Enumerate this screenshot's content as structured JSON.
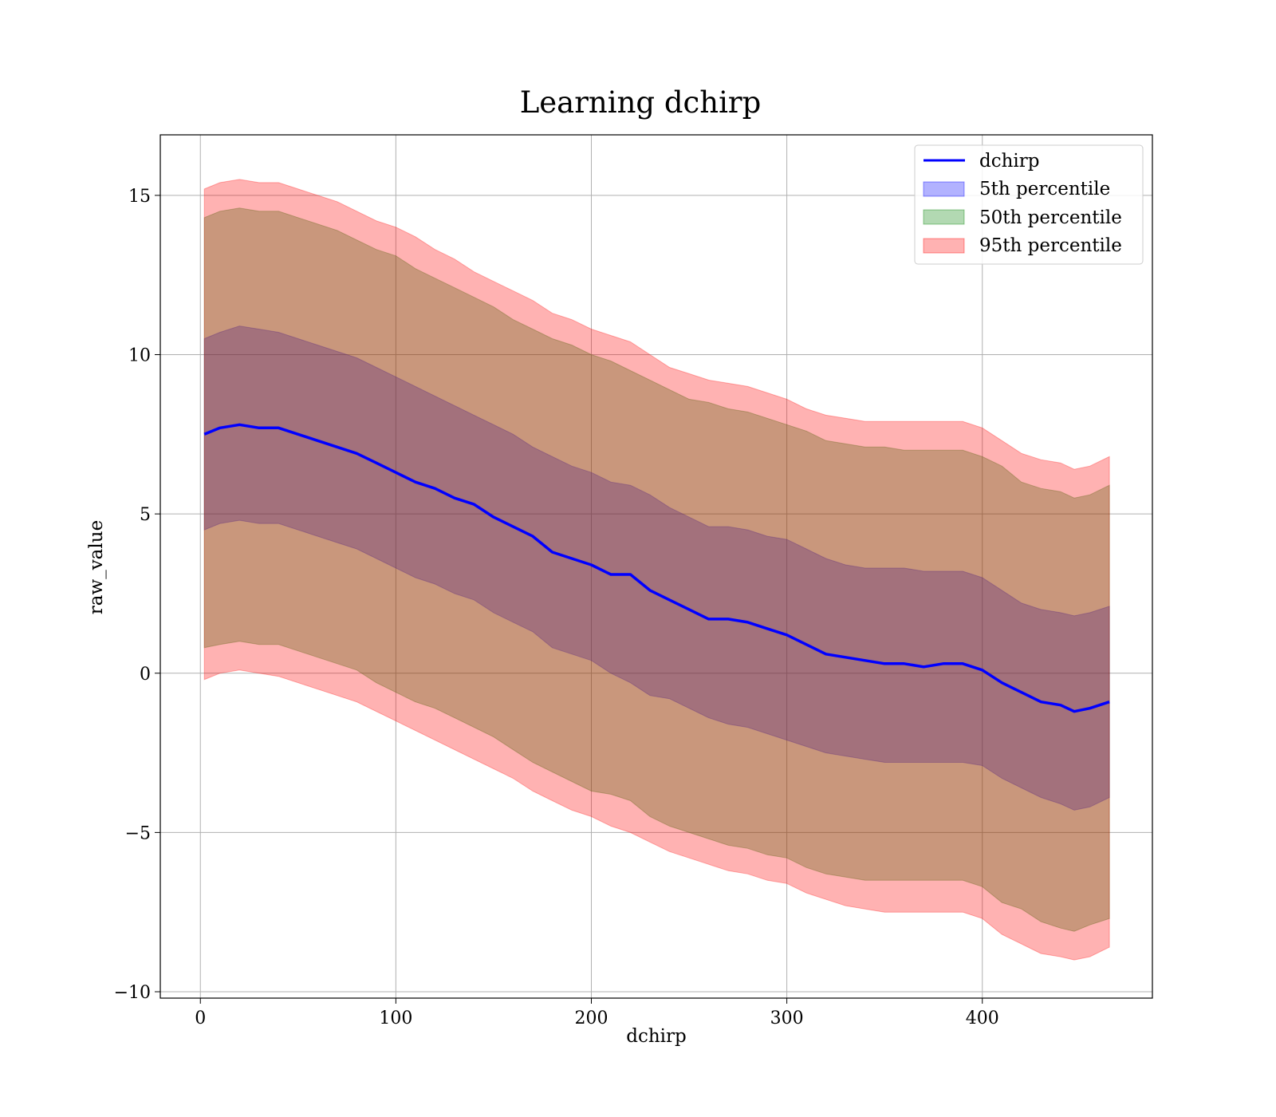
{
  "chart_data": {
    "type": "line",
    "title": "Learning dchirp",
    "xlabel": "dchirp",
    "ylabel": "raw_value",
    "xlim": [
      -20.5,
      487
    ],
    "ylim": [
      -10.2,
      16.9
    ],
    "xticks": [
      0,
      100,
      200,
      300,
      400
    ],
    "yticks": [
      -10,
      -5,
      0,
      5,
      10,
      15
    ],
    "xtick_labels": [
      "0",
      "100",
      "200",
      "300",
      "400"
    ],
    "ytick_labels": [
      "−10",
      "−5",
      "0",
      "5",
      "10",
      "15"
    ],
    "grid": true,
    "legend_position": "top-right",
    "x": [
      2,
      10,
      20,
      30,
      40,
      50,
      60,
      70,
      80,
      90,
      100,
      110,
      120,
      130,
      140,
      150,
      160,
      170,
      180,
      190,
      200,
      210,
      220,
      230,
      240,
      250,
      260,
      270,
      280,
      290,
      300,
      310,
      320,
      330,
      340,
      350,
      360,
      370,
      380,
      390,
      400,
      410,
      420,
      430,
      440,
      447,
      455,
      465
    ],
    "series": [
      {
        "name": "dchirp",
        "kind": "line",
        "color": "#0000ff",
        "values": [
          7.5,
          7.7,
          7.8,
          7.7,
          7.7,
          7.5,
          7.3,
          7.1,
          6.9,
          6.6,
          6.3,
          6.0,
          5.8,
          5.5,
          5.3,
          4.9,
          4.6,
          4.3,
          3.8,
          3.6,
          3.4,
          3.1,
          3.1,
          2.6,
          2.3,
          2.0,
          1.7,
          1.7,
          1.6,
          1.4,
          1.2,
          0.9,
          0.6,
          0.5,
          0.4,
          0.3,
          0.3,
          0.2,
          0.3,
          0.3,
          0.1,
          -0.3,
          -0.6,
          -0.9,
          -1.0,
          -1.2,
          -1.1,
          -0.9
        ]
      },
      {
        "name": "5th percentile",
        "kind": "band",
        "color": "#0000ff",
        "lower": [
          4.5,
          4.7,
          4.8,
          4.7,
          4.7,
          4.5,
          4.3,
          4.1,
          3.9,
          3.6,
          3.3,
          3.0,
          2.8,
          2.5,
          2.3,
          1.9,
          1.6,
          1.3,
          0.8,
          0.6,
          0.4,
          0.0,
          -0.3,
          -0.7,
          -0.8,
          -1.1,
          -1.4,
          -1.6,
          -1.7,
          -1.9,
          -2.1,
          -2.3,
          -2.5,
          -2.6,
          -2.7,
          -2.8,
          -2.8,
          -2.8,
          -2.8,
          -2.8,
          -2.9,
          -3.3,
          -3.6,
          -3.9,
          -4.1,
          -4.3,
          -4.2,
          -3.9
        ],
        "upper": [
          10.5,
          10.7,
          10.9,
          10.8,
          10.7,
          10.5,
          10.3,
          10.1,
          9.9,
          9.6,
          9.3,
          9.0,
          8.7,
          8.4,
          8.1,
          7.8,
          7.5,
          7.1,
          6.8,
          6.5,
          6.3,
          6.0,
          5.9,
          5.6,
          5.2,
          4.9,
          4.6,
          4.6,
          4.5,
          4.3,
          4.2,
          3.9,
          3.6,
          3.4,
          3.3,
          3.3,
          3.3,
          3.2,
          3.2,
          3.2,
          3.0,
          2.6,
          2.2,
          2.0,
          1.9,
          1.8,
          1.9,
          2.1
        ]
      },
      {
        "name": "50th percentile",
        "kind": "band",
        "color": "#008000",
        "lower": [
          0.8,
          0.9,
          1.0,
          0.9,
          0.9,
          0.7,
          0.5,
          0.3,
          0.1,
          -0.3,
          -0.6,
          -0.9,
          -1.1,
          -1.4,
          -1.7,
          -2.0,
          -2.4,
          -2.8,
          -3.1,
          -3.4,
          -3.7,
          -3.8,
          -4.0,
          -4.5,
          -4.8,
          -5.0,
          -5.2,
          -5.4,
          -5.5,
          -5.7,
          -5.8,
          -6.1,
          -6.3,
          -6.4,
          -6.5,
          -6.5,
          -6.5,
          -6.5,
          -6.5,
          -6.5,
          -6.7,
          -7.2,
          -7.4,
          -7.8,
          -8.0,
          -8.1,
          -7.9,
          -7.7
        ],
        "upper": [
          14.3,
          14.5,
          14.6,
          14.5,
          14.5,
          14.3,
          14.1,
          13.9,
          13.6,
          13.3,
          13.1,
          12.7,
          12.4,
          12.1,
          11.8,
          11.5,
          11.1,
          10.8,
          10.5,
          10.3,
          10.0,
          9.8,
          9.5,
          9.2,
          8.9,
          8.6,
          8.5,
          8.3,
          8.2,
          8.0,
          7.8,
          7.6,
          7.3,
          7.2,
          7.1,
          7.1,
          7.0,
          7.0,
          7.0,
          7.0,
          6.8,
          6.5,
          6.0,
          5.8,
          5.7,
          5.5,
          5.6,
          5.9
        ]
      },
      {
        "name": "95th percentile",
        "kind": "band",
        "color": "#ff0000",
        "lower": [
          -0.2,
          0.0,
          0.1,
          0.0,
          -0.1,
          -0.3,
          -0.5,
          -0.7,
          -0.9,
          -1.2,
          -1.5,
          -1.8,
          -2.1,
          -2.4,
          -2.7,
          -3.0,
          -3.3,
          -3.7,
          -4.0,
          -4.3,
          -4.5,
          -4.8,
          -5.0,
          -5.3,
          -5.6,
          -5.8,
          -6.0,
          -6.2,
          -6.3,
          -6.5,
          -6.6,
          -6.9,
          -7.1,
          -7.3,
          -7.4,
          -7.5,
          -7.5,
          -7.5,
          -7.5,
          -7.5,
          -7.7,
          -8.2,
          -8.5,
          -8.8,
          -8.9,
          -9.0,
          -8.9,
          -8.6
        ],
        "upper": [
          15.2,
          15.4,
          15.5,
          15.4,
          15.4,
          15.2,
          15.0,
          14.8,
          14.5,
          14.2,
          14.0,
          13.7,
          13.3,
          13.0,
          12.6,
          12.3,
          12.0,
          11.7,
          11.3,
          11.1,
          10.8,
          10.6,
          10.4,
          10.0,
          9.6,
          9.4,
          9.2,
          9.1,
          9.0,
          8.8,
          8.6,
          8.3,
          8.1,
          8.0,
          7.9,
          7.9,
          7.9,
          7.9,
          7.9,
          7.9,
          7.7,
          7.3,
          6.9,
          6.7,
          6.6,
          6.4,
          6.5,
          6.8
        ]
      }
    ],
    "legend": [
      {
        "label": "dchirp",
        "kind": "line",
        "color": "#0000ff"
      },
      {
        "label": "5th percentile",
        "kind": "patch",
        "color": "#0000ff"
      },
      {
        "label": "50th percentile",
        "kind": "patch",
        "color": "#008000"
      },
      {
        "label": "95th percentile",
        "kind": "patch",
        "color": "#ff0000"
      }
    ]
  }
}
